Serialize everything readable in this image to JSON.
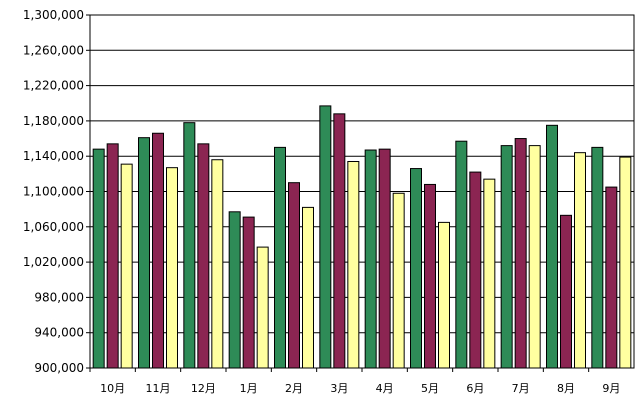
{
  "chart_data": {
    "type": "bar",
    "categories": [
      "10月",
      "11月",
      "12月",
      "1月",
      "2月",
      "3月",
      "4月",
      "5月",
      "6月",
      "7月",
      "8月",
      "9月"
    ],
    "series": [
      {
        "values": [
          1148000,
          1161000,
          1178000,
          1077000,
          1150000,
          1197000,
          1147000,
          1126000,
          1157000,
          1152000,
          1175000,
          1150000
        ]
      },
      {
        "values": [
          1154000,
          1166000,
          1154000,
          1071000,
          1110000,
          1188000,
          1148000,
          1108000,
          1122000,
          1160000,
          1073000,
          1105000
        ]
      },
      {
        "values": [
          1131000,
          1127000,
          1136000,
          1037000,
          1082000,
          1134000,
          1098000,
          1065000,
          1114000,
          1152000,
          1144000,
          1139000
        ]
      }
    ],
    "colors": [
      "#2e8b57",
      "#8b2552",
      "#ffffa0"
    ],
    "ylim": [
      900000,
      1300000
    ],
    "yticks": [
      900000,
      940000,
      980000,
      1020000,
      1060000,
      1100000,
      1140000,
      1180000,
      1220000,
      1260000,
      1300000
    ],
    "ytick_labels": [
      "900,000",
      "940,000",
      "980,000",
      "1,020,000",
      "1,060,000",
      "1,100,000",
      "1,140,000",
      "1,180,000",
      "1,220,000",
      "1,260,000",
      "1,300,000"
    ],
    "grid": true,
    "legend": false,
    "title": "",
    "xlabel": "",
    "ylabel": ""
  }
}
